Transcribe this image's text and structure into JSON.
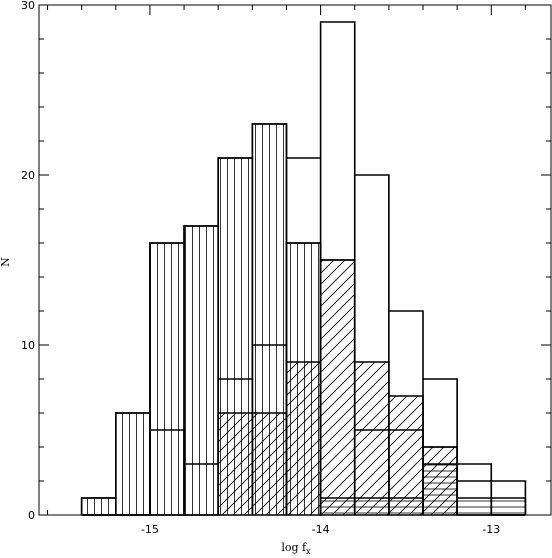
{
  "chart_data": {
    "type": "bar",
    "xlabel": "log f",
    "xlabel_subscript": "x",
    "ylabel": "N",
    "xlim": [
      -15.65,
      -12.65
    ],
    "ylim": [
      0,
      30
    ],
    "x_ticks": [
      -15,
      -14,
      -13
    ],
    "x_tick_labels": [
      "-15",
      "-14",
      "-13"
    ],
    "y_ticks": [
      0,
      10,
      20,
      30
    ],
    "y_tick_labels": [
      "0",
      "10",
      "20",
      "30"
    ],
    "bin_edges": [
      -15.4,
      -15.2,
      -15.0,
      -14.8,
      -14.6,
      -14.4,
      -14.2,
      -14.0,
      -13.8,
      -13.6,
      -13.4,
      -13.2,
      -13.0,
      -12.8
    ],
    "series": [
      {
        "hatch": "none",
        "values": [
          1,
          6,
          16,
          17,
          21,
          23,
          21,
          29,
          20,
          12,
          8,
          3,
          2
        ]
      },
      {
        "hatch": "vertical",
        "values": [
          1,
          6,
          16,
          17,
          21,
          23,
          16,
          0,
          0,
          0,
          0,
          0,
          0
        ]
      },
      {
        "hatch": "diagonal",
        "values": [
          0,
          0,
          0,
          0,
          6,
          6,
          9,
          15,
          9,
          7,
          4,
          0,
          0
        ]
      },
      {
        "hatch": "none",
        "values": [
          0,
          0,
          5,
          3,
          8,
          10,
          16,
          15,
          5,
          5,
          4,
          2,
          0
        ]
      },
      {
        "hatch": "horizontal",
        "values": [
          0,
          0,
          0,
          0,
          0,
          0,
          0,
          1,
          1,
          1,
          3,
          1,
          1
        ]
      }
    ],
    "grid": false,
    "colors": {
      "line": "#000000",
      "background": "#ffffff"
    }
  }
}
